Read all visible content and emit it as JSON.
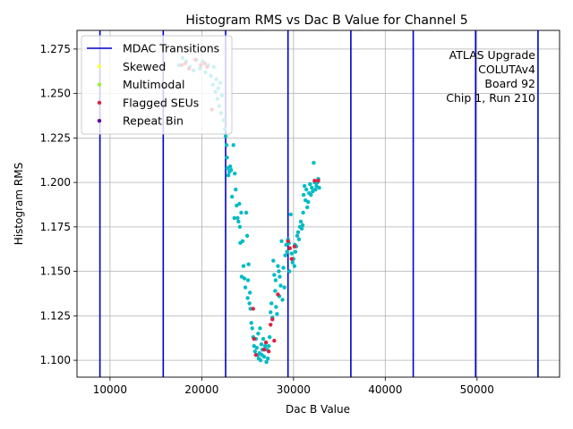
{
  "chart_data": {
    "type": "scatter",
    "title": "Histogram RMS vs Dac B Value for Channel 5",
    "xlabel": "Dac B Value",
    "ylabel": "Histogram RMS",
    "xlim": [
      6400,
      59000
    ],
    "ylim": [
      1.0905,
      1.2855
    ],
    "xticks": [
      10000,
      20000,
      30000,
      40000,
      50000
    ],
    "xtick_labels": [
      "10000",
      "20000",
      "30000",
      "40000",
      "50000"
    ],
    "yticks": [
      1.1,
      1.125,
      1.15,
      1.175,
      1.2,
      1.225,
      1.25,
      1.275
    ],
    "ytick_labels": [
      "1.100",
      "1.125",
      "1.150",
      "1.175",
      "1.200",
      "1.225",
      "1.250",
      "1.275"
    ],
    "grid": true,
    "legend_position": "top-left",
    "legend": [
      {
        "label": "MDAC Transitions",
        "kind": "line",
        "color": "#0000cc"
      },
      {
        "label": "Skewed",
        "kind": "point",
        "color": "#ffff33"
      },
      {
        "label": "Multimodal",
        "kind": "point",
        "color": "#99ee33"
      },
      {
        "label": "Flagged SEUs",
        "kind": "point",
        "color": "#dd2244"
      },
      {
        "label": "Repeat Bin",
        "kind": "point",
        "color": "#660099"
      }
    ],
    "annotation": [
      "ATLAS Upgrade",
      "COLUTAv4",
      "Board 92",
      "Chip 1, Run 210"
    ],
    "mdac_transitions": [
      8900,
      15800,
      22600,
      29400,
      36250,
      43050,
      49850,
      56650
    ],
    "series": [
      {
        "category": "normal",
        "color": "#00bcc4",
        "points": [
          [
            17500,
            1.266
          ],
          [
            17900,
            1.27
          ],
          [
            18300,
            1.268
          ],
          [
            18700,
            1.265
          ],
          [
            19100,
            1.263
          ],
          [
            19400,
            1.269
          ],
          [
            19800,
            1.264
          ],
          [
            20100,
            1.268
          ],
          [
            20400,
            1.262
          ],
          [
            20700,
            1.266
          ],
          [
            21000,
            1.26
          ],
          [
            21200,
            1.255
          ],
          [
            21500,
            1.251
          ],
          [
            21700,
            1.247
          ],
          [
            21900,
            1.243
          ],
          [
            22100,
            1.239
          ],
          [
            21300,
            1.265
          ],
          [
            21600,
            1.258
          ],
          [
            21800,
            1.253
          ],
          [
            22000,
            1.256
          ],
          [
            22200,
            1.249
          ],
          [
            22400,
            1.235
          ],
          [
            22500,
            1.23
          ],
          [
            22600,
            1.226
          ],
          [
            22700,
            1.221
          ],
          [
            22750,
            1.214
          ],
          [
            22800,
            1.208
          ],
          [
            22900,
            1.204
          ],
          [
            23000,
            1.206
          ],
          [
            23100,
            1.209
          ],
          [
            23200,
            1.207
          ],
          [
            23300,
            1.192
          ],
          [
            23450,
            1.221
          ],
          [
            23600,
            1.205
          ],
          [
            23700,
            1.196
          ],
          [
            23800,
            1.187
          ],
          [
            23900,
            1.18
          ],
          [
            24000,
            1.178
          ],
          [
            24100,
            1.188
          ],
          [
            24200,
            1.166
          ],
          [
            24300,
            1.183
          ],
          [
            24450,
            1.167
          ],
          [
            24550,
            1.153
          ],
          [
            24650,
            1.146
          ],
          [
            24750,
            1.141
          ],
          [
            24850,
            1.183
          ],
          [
            24950,
            1.17
          ],
          [
            25000,
            1.135
          ],
          [
            25100,
            1.154
          ],
          [
            25200,
            1.132
          ],
          [
            25300,
            1.129
          ],
          [
            25400,
            1.121
          ],
          [
            25500,
            1.118
          ],
          [
            25600,
            1.113
          ],
          [
            25700,
            1.108
          ],
          [
            25800,
            1.105
          ],
          [
            25900,
            1.112
          ],
          [
            26000,
            1.107
          ],
          [
            26100,
            1.103
          ],
          [
            26200,
            1.101
          ],
          [
            26300,
            1.104
          ],
          [
            26400,
            1.1
          ],
          [
            26500,
            1.109
          ],
          [
            26600,
            1.106
          ],
          [
            26700,
            1.112
          ],
          [
            26800,
            1.102
          ],
          [
            26900,
            1.108
          ],
          [
            27000,
            1.11
          ],
          [
            27100,
            1.106
          ],
          [
            27200,
            1.101
          ],
          [
            27300,
            1.108
          ],
          [
            27400,
            1.113
          ],
          [
            27500,
            1.127
          ],
          [
            27600,
            1.132
          ],
          [
            27700,
            1.124
          ],
          [
            27800,
            1.156
          ],
          [
            27900,
            1.148
          ],
          [
            28000,
            1.139
          ],
          [
            28100,
            1.13
          ],
          [
            28200,
            1.126
          ],
          [
            28300,
            1.153
          ],
          [
            28400,
            1.15
          ],
          [
            28500,
            1.147
          ],
          [
            28600,
            1.142
          ],
          [
            28700,
            1.167
          ],
          [
            28800,
            1.134
          ],
          [
            28900,
            1.152
          ],
          [
            29000,
            1.141
          ],
          [
            29100,
            1.159
          ],
          [
            29200,
            1.165
          ],
          [
            29300,
            1.161
          ],
          [
            29400,
            1.168
          ],
          [
            29500,
            1.166
          ],
          [
            29600,
            1.163
          ],
          [
            29700,
            1.182
          ],
          [
            29800,
            1.16
          ],
          [
            29900,
            1.155
          ],
          [
            30000,
            1.157
          ],
          [
            30100,
            1.153
          ],
          [
            30200,
            1.161
          ],
          [
            30300,
            1.164
          ],
          [
            30400,
            1.17
          ],
          [
            30500,
            1.172
          ],
          [
            30600,
            1.168
          ],
          [
            30700,
            1.175
          ],
          [
            30800,
            1.178
          ],
          [
            30900,
            1.174
          ],
          [
            31000,
            1.176
          ],
          [
            31100,
            1.193
          ],
          [
            31200,
            1.198
          ],
          [
            31300,
            1.19
          ],
          [
            31400,
            1.196
          ],
          [
            31500,
            1.186
          ],
          [
            31600,
            1.189
          ],
          [
            31700,
            1.194
          ],
          [
            31800,
            1.199
          ],
          [
            31900,
            1.193
          ],
          [
            32000,
            1.197
          ],
          [
            32100,
            1.195
          ],
          [
            32200,
            1.211
          ],
          [
            32300,
            1.2
          ],
          [
            32400,
            1.196
          ],
          [
            32500,
            1.198
          ],
          [
            32600,
            1.2
          ],
          [
            32700,
            1.202
          ],
          [
            32800,
            1.197
          ],
          [
            26150,
            1.115
          ],
          [
            26350,
            1.118
          ],
          [
            25050,
            1.145
          ],
          [
            25250,
            1.138
          ],
          [
            24350,
            1.147
          ],
          [
            23550,
            1.18
          ],
          [
            24150,
            1.175
          ],
          [
            26550,
            1.103
          ],
          [
            27050,
            1.099
          ],
          [
            28050,
            1.145
          ],
          [
            28450,
            1.136
          ],
          [
            29550,
            1.15
          ],
          [
            30150,
            1.165
          ],
          [
            31050,
            1.183
          ]
        ]
      },
      {
        "category": "Flagged SEUs",
        "color": "#dd2244",
        "points": [
          [
            17800,
            1.266
          ],
          [
            18200,
            1.267
          ],
          [
            18600,
            1.264
          ],
          [
            19300,
            1.269
          ],
          [
            19900,
            1.266
          ],
          [
            20300,
            1.267
          ],
          [
            20600,
            1.265
          ],
          [
            21100,
            1.241
          ],
          [
            25600,
            1.129
          ],
          [
            25700,
            1.112
          ],
          [
            25900,
            1.103
          ],
          [
            26800,
            1.106
          ],
          [
            27000,
            1.11
          ],
          [
            27300,
            1.105
          ],
          [
            27500,
            1.12
          ],
          [
            27700,
            1.123
          ],
          [
            27900,
            1.111
          ],
          [
            28300,
            1.137
          ],
          [
            29400,
            1.167
          ],
          [
            29600,
            1.163
          ],
          [
            29800,
            1.157
          ],
          [
            30100,
            1.164
          ],
          [
            32300,
            1.201
          ],
          [
            32700,
            1.201
          ]
        ]
      }
    ]
  }
}
